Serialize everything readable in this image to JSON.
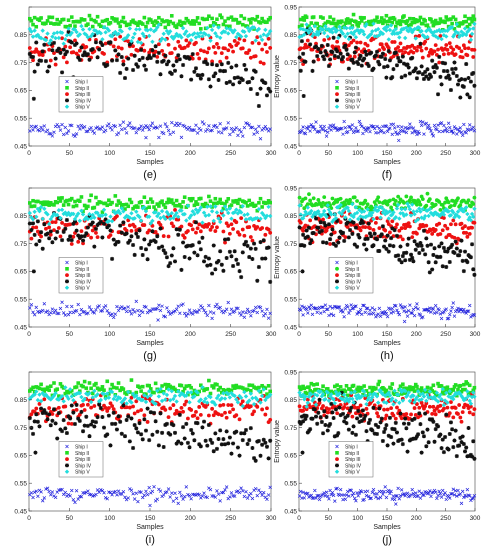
{
  "chart_data": [
    {
      "type": "scatter",
      "panel_label": "(e)",
      "xlabel": "Samples",
      "ylabel": "",
      "xlim": [
        0,
        300
      ],
      "ylim": [
        0.45,
        0.95
      ],
      "xticks": [
        "0",
        "50",
        "100",
        "150",
        "200",
        "250",
        "300"
      ],
      "yticks": [
        "0.45",
        "0.55",
        "0.65",
        "0.75",
        "0.85",
        "0.95"
      ],
      "yticks_visible": [
        "0.45",
        "0.55",
        "0.65",
        "0.75",
        "0.85"
      ],
      "legend_placement": "lower-left",
      "series": [
        {
          "name": "Ship I",
          "marker": "x",
          "color": "#2222dd",
          "mean": 0.51,
          "spread": 0.012,
          "trend": 0,
          "x_step": 2,
          "outliers": [
            [
              145,
              0.48
            ]
          ]
        },
        {
          "name": "Ship II",
          "marker": "square",
          "color": "#22dd22",
          "mean": 0.897,
          "spread": 0.012,
          "trend": 0,
          "x_step": 2,
          "outliers": []
        },
        {
          "name": "Ship III",
          "marker": "circle",
          "color": "#ee1111",
          "mean": 0.795,
          "spread": 0.024,
          "trend": 0,
          "x_step": 2,
          "outliers": []
        },
        {
          "name": "Ship IV",
          "marker": "star",
          "color": "#111111",
          "mean": 0.79,
          "spread": 0.032,
          "trend": -0.11,
          "x_step": 2,
          "outliers": [
            [
              6,
              0.62
            ]
          ]
        },
        {
          "name": "Ship V",
          "marker": "diamond",
          "color": "#22dddd",
          "mean": 0.855,
          "spread": 0.014,
          "trend": 0,
          "x_step": 2,
          "outliers": []
        }
      ]
    },
    {
      "type": "scatter",
      "panel_label": "(f)",
      "xlabel": "Samples",
      "ylabel": "Entropy value",
      "xlim": [
        0,
        300
      ],
      "ylim": [
        0.45,
        0.95
      ],
      "xticks": [
        "0",
        "50",
        "100",
        "150",
        "200",
        "250",
        "300"
      ],
      "yticks": [
        "0.45",
        "0.55",
        "0.65",
        "0.75",
        "0.85",
        "0.95"
      ],
      "yticks_visible": [
        "0.45",
        "0.55",
        "0.65",
        "0.75",
        "0.85",
        "0.95"
      ],
      "legend_placement": "lower-left",
      "series": [
        {
          "name": "Ship I",
          "marker": "x",
          "color": "#2222dd",
          "mean": 0.51,
          "spread": 0.012,
          "trend": 0,
          "x_step": 2,
          "outliers": [
            [
              170,
              0.47
            ]
          ]
        },
        {
          "name": "Ship II",
          "marker": "square",
          "color": "#22dd22",
          "mean": 0.897,
          "spread": 0.012,
          "trend": 0,
          "x_step": 2,
          "outliers": []
        },
        {
          "name": "Ship III",
          "marker": "circle",
          "color": "#ee1111",
          "mean": 0.8,
          "spread": 0.024,
          "trend": 0,
          "x_step": 2,
          "outliers": []
        },
        {
          "name": "Ship IV",
          "marker": "star",
          "color": "#111111",
          "mean": 0.79,
          "spread": 0.032,
          "trend": -0.11,
          "x_step": 2,
          "outliers": [
            [
              8,
              0.63
            ]
          ]
        },
        {
          "name": "Ship V",
          "marker": "diamond",
          "color": "#22dddd",
          "mean": 0.86,
          "spread": 0.014,
          "trend": 0,
          "x_step": 2,
          "outliers": []
        }
      ]
    },
    {
      "type": "scatter",
      "panel_label": "(g)",
      "xlabel": "Samples",
      "ylabel": "",
      "xlim": [
        0,
        300
      ],
      "ylim": [
        0.45,
        0.95
      ],
      "xticks": [
        "0",
        "50",
        "100",
        "150",
        "200",
        "250",
        "300"
      ],
      "yticks": [
        "0.45",
        "0.55",
        "0.65",
        "0.75",
        "0.85",
        "0.95"
      ],
      "yticks_visible": [
        "0.45",
        "0.55",
        "0.65",
        "0.75",
        "0.85"
      ],
      "legend_placement": "lower-left",
      "series": [
        {
          "name": "Ship I",
          "marker": "x",
          "color": "#2222dd",
          "mean": 0.51,
          "spread": 0.012,
          "trend": 0,
          "x_step": 2,
          "outliers": [
            [
              160,
              0.475
            ]
          ]
        },
        {
          "name": "Ship II",
          "marker": "square",
          "color": "#22dd22",
          "mean": 0.895,
          "spread": 0.012,
          "trend": 0,
          "x_step": 2,
          "outliers": []
        },
        {
          "name": "Ship III",
          "marker": "circle",
          "color": "#ee1111",
          "mean": 0.805,
          "spread": 0.024,
          "trend": 0,
          "x_step": 2,
          "outliers": []
        },
        {
          "name": "Ship IV",
          "marker": "star",
          "color": "#111111",
          "mean": 0.79,
          "spread": 0.035,
          "trend": -0.1,
          "x_step": 2,
          "outliers": [
            [
              6,
              0.65
            ]
          ]
        },
        {
          "name": "Ship V",
          "marker": "diamond",
          "color": "#22dddd",
          "mean": 0.855,
          "spread": 0.014,
          "trend": 0,
          "x_step": 2,
          "outliers": []
        }
      ]
    },
    {
      "type": "scatter",
      "panel_label": "(h)",
      "xlabel": "Samples",
      "ylabel": "Entropy value",
      "xlim": [
        0,
        300
      ],
      "ylim": [
        0.45,
        0.95
      ],
      "xticks": [
        "0",
        "50",
        "100",
        "150",
        "200",
        "250",
        "300"
      ],
      "yticks": [
        "0.45",
        "0.55",
        "0.65",
        "0.75",
        "0.85",
        "0.95"
      ],
      "yticks_visible": [
        "0.45",
        "0.55",
        "0.65",
        "0.75",
        "0.85",
        "0.95"
      ],
      "legend_placement": "lower-left",
      "series": [
        {
          "name": "Ship I",
          "marker": "x",
          "color": "#2222dd",
          "mean": 0.51,
          "spread": 0.012,
          "trend": 0,
          "x_step": 2,
          "outliers": [
            [
              180,
              0.47
            ]
          ]
        },
        {
          "name": "Ship II",
          "marker": "circle",
          "color": "#22dd22",
          "mean": 0.895,
          "spread": 0.012,
          "trend": 0,
          "x_step": 2,
          "outliers": []
        },
        {
          "name": "Ship III",
          "marker": "circle",
          "color": "#ee1111",
          "mean": 0.805,
          "spread": 0.024,
          "trend": 0,
          "x_step": 2,
          "outliers": []
        },
        {
          "name": "Ship IV",
          "marker": "star",
          "color": "#111111",
          "mean": 0.79,
          "spread": 0.035,
          "trend": -0.1,
          "x_step": 2,
          "outliers": [
            [
              6,
              0.65
            ]
          ]
        },
        {
          "name": "Ship V",
          "marker": "diamond",
          "color": "#22dddd",
          "mean": 0.86,
          "spread": 0.014,
          "trend": 0,
          "x_step": 2,
          "outliers": []
        }
      ]
    },
    {
      "type": "scatter",
      "panel_label": "(i)",
      "xlabel": "Samples",
      "ylabel": "",
      "xlim": [
        0,
        300
      ],
      "ylim": [
        0.45,
        0.95
      ],
      "xticks": [
        "0",
        "50",
        "100",
        "150",
        "200",
        "250",
        "300"
      ],
      "yticks": [
        "0.45",
        "0.55",
        "0.65",
        "0.75",
        "0.85",
        "0.95"
      ],
      "yticks_visible": [
        "0.45",
        "0.55",
        "0.65",
        "0.75",
        "0.85"
      ],
      "legend_placement": "lower-left",
      "series": [
        {
          "name": "Ship I",
          "marker": "x",
          "color": "#2222dd",
          "mean": 0.51,
          "spread": 0.012,
          "trend": 0,
          "x_step": 2,
          "outliers": [
            [
              150,
              0.47
            ]
          ]
        },
        {
          "name": "Ship II",
          "marker": "square",
          "color": "#22dd22",
          "mean": 0.89,
          "spread": 0.012,
          "trend": 0,
          "x_step": 2,
          "outliers": []
        },
        {
          "name": "Ship III",
          "marker": "circle",
          "color": "#ee1111",
          "mean": 0.815,
          "spread": 0.022,
          "trend": 0,
          "x_step": 2,
          "outliers": []
        },
        {
          "name": "Ship IV",
          "marker": "star",
          "color": "#111111",
          "mean": 0.78,
          "spread": 0.035,
          "trend": -0.1,
          "x_step": 2,
          "outliers": [
            [
              8,
              0.66
            ]
          ]
        },
        {
          "name": "Ship V",
          "marker": "diamond",
          "color": "#22dddd",
          "mean": 0.86,
          "spread": 0.014,
          "trend": 0,
          "x_step": 2,
          "outliers": []
        }
      ]
    },
    {
      "type": "scatter",
      "panel_label": "(j)",
      "xlabel": "Samples",
      "ylabel": "Entropy value",
      "xlim": [
        0,
        300
      ],
      "ylim": [
        0.45,
        0.95
      ],
      "xticks": [
        "0",
        "50",
        "100",
        "150",
        "200",
        "250",
        "300"
      ],
      "yticks": [
        "0.45",
        "0.55",
        "0.65",
        "0.75",
        "0.85",
        "0.95"
      ],
      "yticks_visible": [
        "0.45",
        "0.55",
        "0.65",
        "0.75",
        "0.85",
        "0.95"
      ],
      "legend_placement": "lower-left",
      "series": [
        {
          "name": "Ship I",
          "marker": "x",
          "color": "#2222dd",
          "mean": 0.51,
          "spread": 0.012,
          "trend": 0,
          "x_step": 2,
          "outliers": [
            [
              165,
              0.475
            ]
          ]
        },
        {
          "name": "Ship II",
          "marker": "square",
          "color": "#22dd22",
          "mean": 0.885,
          "spread": 0.012,
          "trend": 0,
          "x_step": 2,
          "outliers": []
        },
        {
          "name": "Ship III",
          "marker": "circle",
          "color": "#ee1111",
          "mean": 0.82,
          "spread": 0.022,
          "trend": 0,
          "x_step": 2,
          "outliers": []
        },
        {
          "name": "Ship IV",
          "marker": "star",
          "color": "#111111",
          "mean": 0.78,
          "spread": 0.035,
          "trend": -0.1,
          "x_step": 2,
          "outliers": [
            [
              6,
              0.66
            ]
          ]
        },
        {
          "name": "Ship V",
          "marker": "diamond",
          "color": "#22dddd",
          "mean": 0.86,
          "spread": 0.014,
          "trend": 0,
          "x_step": 2,
          "outliers": []
        }
      ]
    }
  ]
}
